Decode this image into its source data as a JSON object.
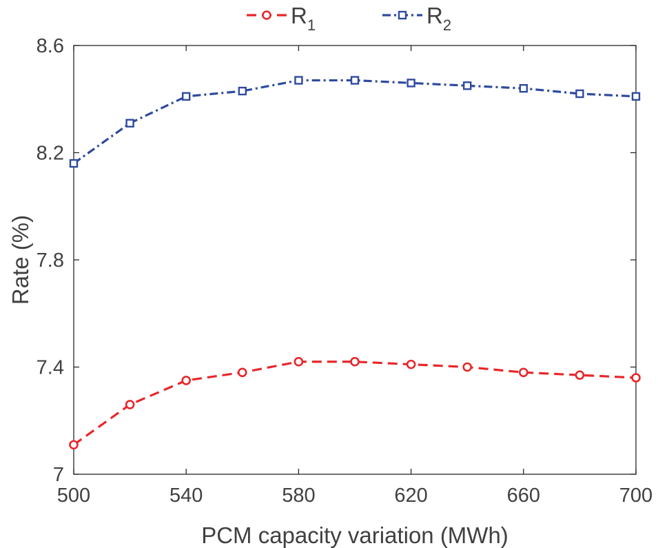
{
  "chart_data": {
    "type": "line",
    "title": "",
    "xlabel": "PCM capacity variation (MWh)",
    "ylabel": "Rate (%)",
    "xlim": [
      500,
      700
    ],
    "ylim": [
      7,
      8.6
    ],
    "x_ticks": [
      500,
      540,
      580,
      620,
      660,
      700
    ],
    "x_tick_labels": [
      "500",
      "540",
      "580",
      "620",
      "660",
      "700"
    ],
    "y_ticks": [
      7,
      7.4,
      7.8,
      8.2,
      8.6
    ],
    "y_tick_labels": [
      "7",
      "7.4",
      "7.8",
      "8.2",
      "8.6"
    ],
    "grid": false,
    "legend_position": "top-center-outside",
    "x": [
      500,
      520,
      540,
      560,
      580,
      600,
      620,
      640,
      660,
      680,
      700
    ],
    "series": [
      {
        "name": "R1",
        "label_main": "R",
        "label_sub": "1",
        "color": "#e8262a",
        "line_style": "dashed",
        "marker": "circle",
        "values": [
          7.11,
          7.26,
          7.35,
          7.38,
          7.42,
          7.42,
          7.41,
          7.4,
          7.38,
          7.37,
          7.36
        ]
      },
      {
        "name": "R2",
        "label_main": "R",
        "label_sub": "2",
        "color": "#2e4a9e",
        "line_style": "dash-dot",
        "marker": "square",
        "values": [
          8.16,
          8.31,
          8.41,
          8.43,
          8.47,
          8.47,
          8.46,
          8.45,
          8.44,
          8.42,
          8.41
        ]
      }
    ]
  }
}
